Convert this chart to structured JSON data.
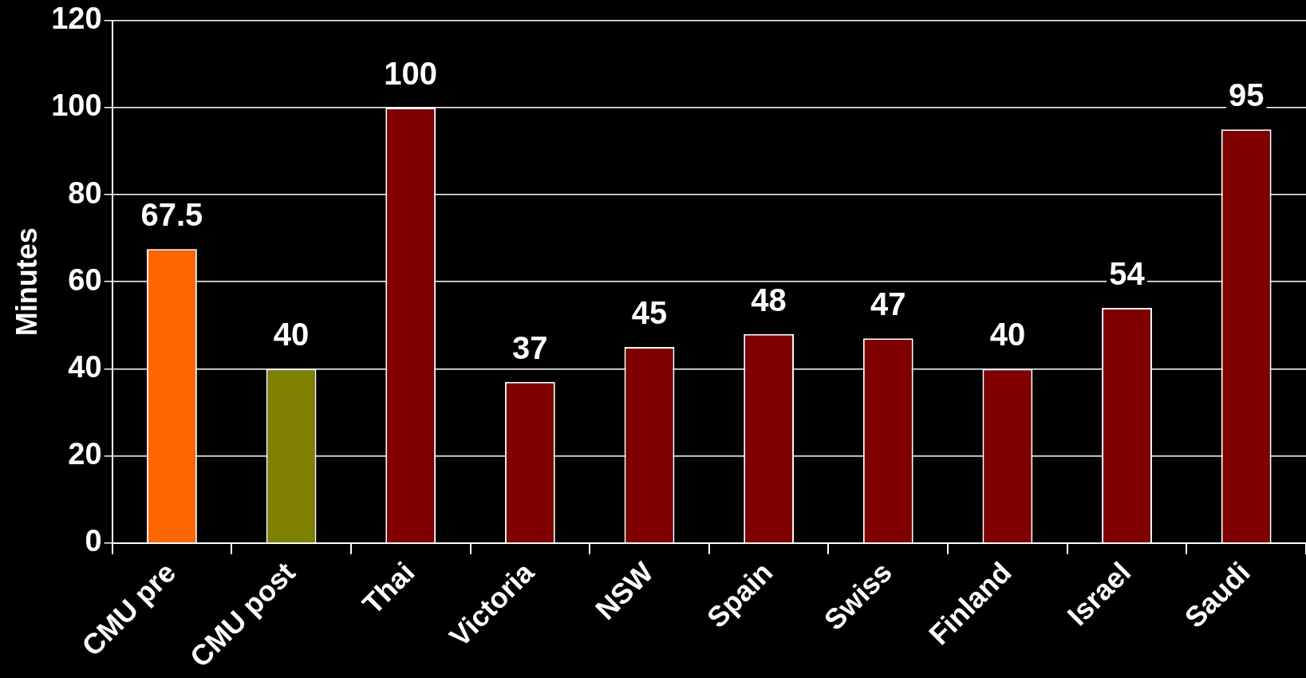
{
  "chart_data": {
    "type": "bar",
    "ylabel": "Minutes",
    "categories": [
      "CMU pre",
      "CMU post",
      "Thai",
      "Victoria",
      "NSW",
      "Spain",
      "Swiss",
      "Finland",
      "Israel",
      "Saudi"
    ],
    "values": [
      67.5,
      40,
      100,
      37,
      45,
      48,
      47,
      40,
      54,
      95
    ],
    "colors": [
      "#ff6600",
      "#808000",
      "#800000",
      "#800000",
      "#800000",
      "#800000",
      "#800000",
      "#800000",
      "#800000",
      "#800000"
    ],
    "ylim": [
      0,
      120
    ],
    "yticks": [
      0,
      20,
      40,
      60,
      80,
      100,
      120
    ],
    "grid": "y",
    "data_labels": true
  }
}
